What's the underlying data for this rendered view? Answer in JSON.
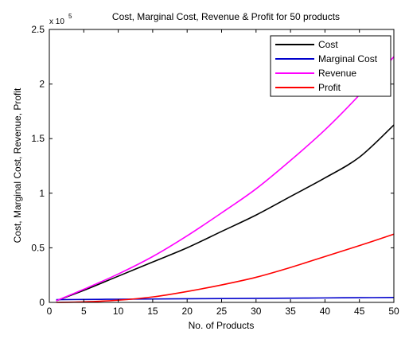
{
  "chart_data": {
    "type": "line",
    "title": "Cost, Marginal Cost, Revenue & Profit for 50 products",
    "xlabel": "No. of Products",
    "ylabel": "Cost, Marginal Cost, Revenue, Profit",
    "y_exponent_base": "x 10",
    "y_exponent_power": "5",
    "xlim": [
      0,
      50
    ],
    "ylim": [
      0,
      2.5
    ],
    "y_scale_factor": 100000,
    "x_ticks": [
      0,
      5,
      10,
      15,
      20,
      25,
      30,
      35,
      40,
      45,
      50
    ],
    "y_ticks": [
      0,
      0.5,
      1,
      1.5,
      2,
      2.5
    ],
    "x_tick_labels": [
      "0",
      "5",
      "10",
      "15",
      "20",
      "25",
      "30",
      "35",
      "40",
      "45",
      "50"
    ],
    "y_tick_labels": [
      "0",
      "0.5",
      "1",
      "1.5",
      "2",
      "2.5"
    ],
    "grid": false,
    "legend_position": "top-right",
    "x": [
      1,
      5,
      10,
      15,
      20,
      25,
      30,
      35,
      40,
      45,
      50
    ],
    "series": [
      {
        "name": "Cost",
        "color": "#000000",
        "values": [
          0.015,
          0.11,
          0.24,
          0.37,
          0.5,
          0.65,
          0.8,
          0.97,
          1.14,
          1.33,
          1.625
        ]
      },
      {
        "name": "Marginal Cost",
        "color": "#0000cc",
        "values": [
          0.025,
          0.027,
          0.029,
          0.031,
          0.033,
          0.035,
          0.037,
          0.039,
          0.041,
          0.043,
          0.045
        ]
      },
      {
        "name": "Revenue",
        "color": "#ff00ff",
        "values": [
          0.015,
          0.12,
          0.26,
          0.42,
          0.61,
          0.82,
          1.04,
          1.3,
          1.58,
          1.9,
          2.25
        ]
      },
      {
        "name": "Profit",
        "color": "#ff0000",
        "values": [
          0.0,
          0.005,
          0.02,
          0.05,
          0.1,
          0.16,
          0.23,
          0.32,
          0.42,
          0.52,
          0.625
        ]
      }
    ]
  }
}
